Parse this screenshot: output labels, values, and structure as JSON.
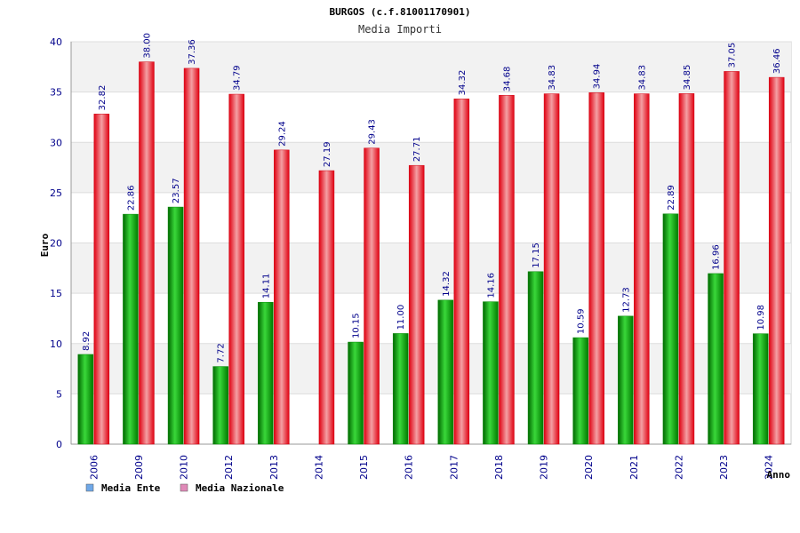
{
  "chart_data": {
    "type": "bar",
    "title": "BURGOS (c.f.81001170901)",
    "subtitle": "Media Importi",
    "xlabel": "Anno",
    "ylabel": "Euro",
    "ylim": [
      0,
      40
    ],
    "yticks": [
      0,
      5,
      10,
      15,
      20,
      25,
      30,
      35,
      40
    ],
    "categories": [
      "2006",
      "2009",
      "2010",
      "2012",
      "2013",
      "2014",
      "2015",
      "2016",
      "2017",
      "2018",
      "2019",
      "2020",
      "2021",
      "2022",
      "2023",
      "2024"
    ],
    "series": [
      {
        "name": "Media Ente",
        "color": "#00b000",
        "values": [
          8.92,
          22.86,
          23.57,
          7.72,
          14.11,
          null,
          10.15,
          11.0,
          14.32,
          14.16,
          17.15,
          10.59,
          12.73,
          22.89,
          16.96,
          10.98
        ],
        "labels": [
          "8.92",
          "22.86",
          "23.57",
          "7.72",
          "14.11",
          null,
          "10.15",
          "11.00",
          "14.32",
          "14.16",
          "17.15",
          "10.59",
          "12.73",
          "22.89",
          "16.96",
          "10.98"
        ]
      },
      {
        "name": "Media Nazionale",
        "color": "#e8141e",
        "values": [
          32.82,
          38.0,
          37.36,
          34.79,
          29.24,
          27.19,
          29.43,
          27.71,
          34.32,
          34.68,
          34.83,
          34.94,
          34.83,
          34.85,
          37.05,
          36.46
        ],
        "labels": [
          "32.82",
          "38.00",
          "37.36",
          "34.79",
          "29.24",
          "27.19",
          "29.43",
          "27.71",
          "34.32",
          "34.68",
          "34.83",
          "34.94",
          "34.83",
          "34.85",
          "37.05",
          "36.46"
        ]
      }
    ],
    "legend": [
      {
        "label": "Media Ente",
        "color": "#6fa8e8"
      },
      {
        "label": "Media Nazionale",
        "color": "#e08ab8"
      }
    ],
    "grid": true,
    "legend_position": "bottom-left"
  }
}
